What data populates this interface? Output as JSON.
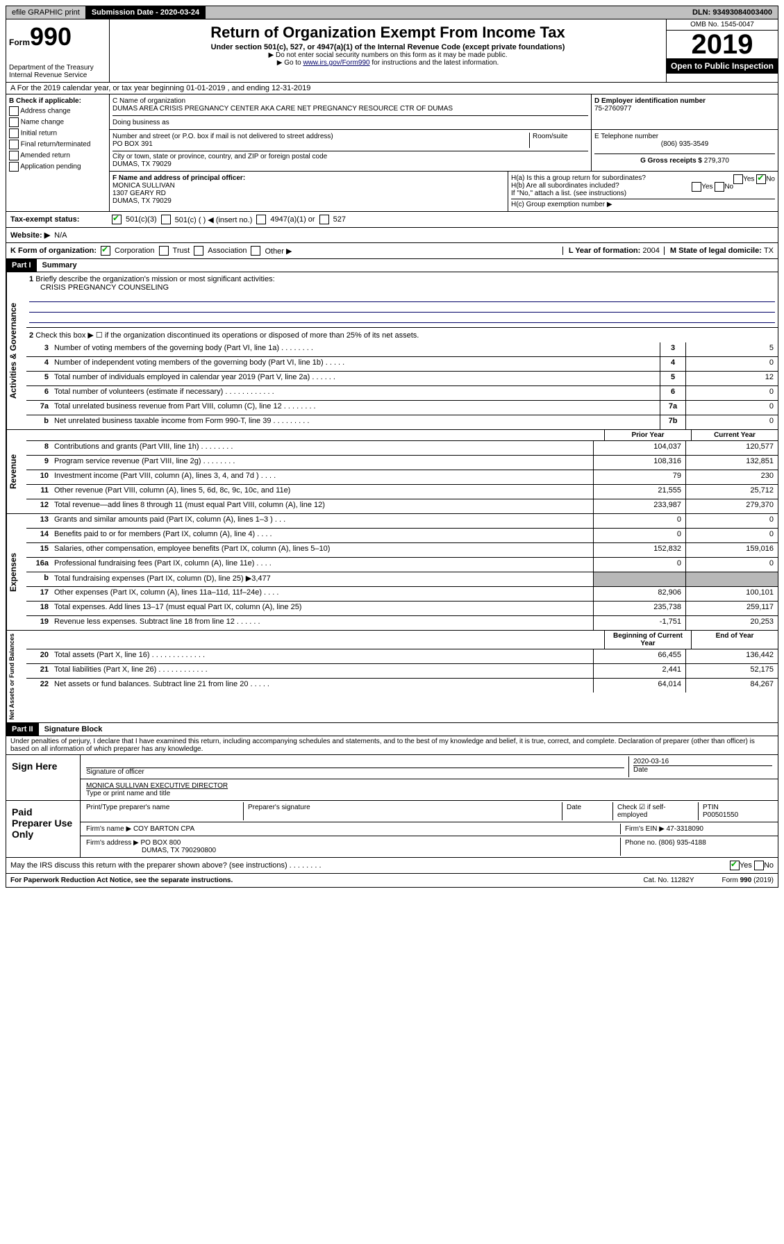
{
  "topbar": {
    "efile": "efile GRAPHIC print",
    "submission_label": "Submission Date - ",
    "submission_date": "2020-03-24",
    "dln": "DLN: 93493084003400"
  },
  "header": {
    "form_prefix": "Form",
    "form_number": "990",
    "dept": "Department of the Treasury\nInternal Revenue Service",
    "title": "Return of Organization Exempt From Income Tax",
    "subtitle": "Under section 501(c), 527, or 4947(a)(1) of the Internal Revenue Code (except private foundations)",
    "note1": "▶ Do not enter social security numbers on this form as it may be made public.",
    "note2_pre": "▶ Go to ",
    "note2_link": "www.irs.gov/Form990",
    "note2_post": " for instructions and the latest information.",
    "omb": "OMB No. 1545-0047",
    "year": "2019",
    "open_public": "Open to Public Inspection"
  },
  "rowA": "A For the 2019 calendar year, or tax year beginning 01-01-2019     , and ending 12-31-2019",
  "colB": {
    "header": "B Check if applicable:",
    "items": [
      "Address change",
      "Name change",
      "Initial return",
      "Final return/terminated",
      "Amended return",
      "Application pending"
    ]
  },
  "colC": {
    "name_label": "C Name of organization",
    "name": "DUMAS AREA CRISIS PREGNANCY CENTER AKA CARE NET PREGNANCY RESOURCE CTR OF DUMAS",
    "dba_label": "Doing business as",
    "addr_label": "Number and street (or P.O. box if mail is not delivered to street address)",
    "room_label": "Room/suite",
    "addr": "PO BOX 391",
    "city_label": "City or town, state or province, country, and ZIP or foreign postal code",
    "city": "DUMAS, TX  79029"
  },
  "colD": {
    "ein_label": "D Employer identification number",
    "ein": "75-2760977",
    "phone_label": "E Telephone number",
    "phone": "(806) 935-3549",
    "gross_label": "G Gross receipts $ ",
    "gross": "279,370"
  },
  "rowF": {
    "label": "F  Name and address of principal officer:",
    "name": "MONICA SULLIVAN",
    "addr1": "1307 GEARY RD",
    "addr2": "DUMAS, TX  79029"
  },
  "rowH": {
    "ha": "H(a)  Is this a group return for subordinates?",
    "hb": "H(b)  Are all subordinates included?",
    "hb_note": "If \"No,\" attach a list. (see instructions)",
    "hc": "H(c)  Group exemption number ▶"
  },
  "rowI": {
    "label": "Tax-exempt status:",
    "opts": [
      "501(c)(3)",
      "501(c) (   ) ◀ (insert no.)",
      "4947(a)(1) or",
      "527"
    ]
  },
  "rowJ": {
    "label": "Website: ▶",
    "val": "N/A"
  },
  "rowK": {
    "label": "K Form of organization:",
    "opts": [
      "Corporation",
      "Trust",
      "Association",
      "Other ▶"
    ],
    "year_label": "L Year of formation: ",
    "year": "2004",
    "state_label": "M State of legal domicile: ",
    "state": "TX"
  },
  "part1": {
    "header": "Part I",
    "title": "Summary"
  },
  "governance": {
    "label": "Activities & Governance",
    "l1": "Briefly describe the organization's mission or most significant activities:",
    "l1_val": "CRISIS PREGNANCY COUNSELING",
    "l2": "Check this box ▶ ☐  if the organization discontinued its operations or disposed of more than 25% of its net assets.",
    "rows": [
      {
        "n": "3",
        "d": "Number of voting members of the governing body (Part VI, line 1a)   .    .    .    .    .    .    .    .",
        "b": "3",
        "v": "5"
      },
      {
        "n": "4",
        "d": "Number of independent voting members of the governing body (Part VI, line 1b)   .    .    .    .    .",
        "b": "4",
        "v": "0"
      },
      {
        "n": "5",
        "d": "Total number of individuals employed in calendar year 2019 (Part V, line 2a)   .    .    .    .    .    .",
        "b": "5",
        "v": "12"
      },
      {
        "n": "6",
        "d": "Total number of volunteers (estimate if necessary)   .    .    .    .    .    .    .    .    .    .    .    .",
        "b": "6",
        "v": "0"
      },
      {
        "n": "7a",
        "d": "Total unrelated business revenue from Part VIII, column (C), line 12   .    .    .    .    .    .    .    .",
        "b": "7a",
        "v": "0"
      },
      {
        "n": "b",
        "d": "Net unrelated business taxable income from Form 990-T, line 39   .    .    .    .    .    .    .    .    .",
        "b": "7b",
        "v": "0"
      }
    ]
  },
  "revenue": {
    "label": "Revenue",
    "header_prior": "Prior Year",
    "header_current": "Current Year",
    "rows": [
      {
        "n": "8",
        "d": "Contributions and grants (Part VIII, line 1h)   .    .    .    .    .    .    .    .",
        "p": "104,037",
        "c": "120,577"
      },
      {
        "n": "9",
        "d": "Program service revenue (Part VIII, line 2g)   .    .    .    .    .    .    .    .",
        "p": "108,316",
        "c": "132,851"
      },
      {
        "n": "10",
        "d": "Investment income (Part VIII, column (A), lines 3, 4, and 7d )   .    .    .    .",
        "p": "79",
        "c": "230"
      },
      {
        "n": "11",
        "d": "Other revenue (Part VIII, column (A), lines 5, 6d, 8c, 9c, 10c, and 11e)",
        "p": "21,555",
        "c": "25,712"
      },
      {
        "n": "12",
        "d": "Total revenue—add lines 8 through 11 (must equal Part VIII, column (A), line 12)",
        "p": "233,987",
        "c": "279,370"
      }
    ]
  },
  "expenses": {
    "label": "Expenses",
    "rows": [
      {
        "n": "13",
        "d": "Grants and similar amounts paid (Part IX, column (A), lines 1–3 )   .    .    .",
        "p": "0",
        "c": "0"
      },
      {
        "n": "14",
        "d": "Benefits paid to or for members (Part IX, column (A), line 4)   .    .    .    .",
        "p": "0",
        "c": "0"
      },
      {
        "n": "15",
        "d": "Salaries, other compensation, employee benefits (Part IX, column (A), lines 5–10)",
        "p": "152,832",
        "c": "159,016"
      },
      {
        "n": "16a",
        "d": "Professional fundraising fees (Part IX, column (A), line 11e)   .    .    .    .",
        "p": "0",
        "c": "0"
      },
      {
        "n": "b",
        "d": "Total fundraising expenses (Part IX, column (D), line 25) ▶3,477",
        "p": "",
        "c": "",
        "shade": true
      },
      {
        "n": "17",
        "d": "Other expenses (Part IX, column (A), lines 11a–11d, 11f–24e)   .    .    .    .",
        "p": "82,906",
        "c": "100,101"
      },
      {
        "n": "18",
        "d": "Total expenses. Add lines 13–17 (must equal Part IX, column (A), line 25)",
        "p": "235,738",
        "c": "259,117"
      },
      {
        "n": "19",
        "d": "Revenue less expenses. Subtract line 18 from line 12   .    .    .    .    .    .",
        "p": "-1,751",
        "c": "20,253"
      }
    ]
  },
  "netassets": {
    "label": "Net Assets or Fund Balances",
    "header_begin": "Beginning of Current Year",
    "header_end": "End of Year",
    "rows": [
      {
        "n": "20",
        "d": "Total assets (Part X, line 16)   .    .    .    .    .    .    .    .    .    .    .    .    .",
        "p": "66,455",
        "c": "136,442"
      },
      {
        "n": "21",
        "d": "Total liabilities (Part X, line 26)   .    .    .    .    .    .    .    .    .    .    .    .",
        "p": "2,441",
        "c": "52,175"
      },
      {
        "n": "22",
        "d": "Net assets or fund balances. Subtract line 21 from line 20   .    .    .    .    .",
        "p": "64,014",
        "c": "84,267"
      }
    ]
  },
  "part2": {
    "header": "Part II",
    "title": "Signature Block"
  },
  "sig": {
    "perjury": "Under penalties of perjury, I declare that I have examined this return, including accompanying schedules and statements, and to the best of my knowledge and belief, it is true, correct, and complete. Declaration of preparer (other than officer) is based on all information of which preparer has any knowledge.",
    "sign_here": "Sign Here",
    "sig_officer": "Signature of officer",
    "date": "2020-03-16",
    "date_label": "Date",
    "typed_name": "MONICA SULLIVAN  EXECUTIVE DIRECTOR",
    "typed_label": "Type or print name and title",
    "paid": "Paid Preparer Use Only",
    "prep_name_label": "Print/Type preparer's name",
    "prep_sig_label": "Preparer's signature",
    "prep_date_label": "Date",
    "check_label": "Check ☑ if self-employed",
    "ptin_label": "PTIN",
    "ptin": "P00501550",
    "firm_name_label": "Firm's name    ▶ ",
    "firm_name": "COY BARTON CPA",
    "firm_ein_label": "Firm's EIN ▶ ",
    "firm_ein": "47-3318090",
    "firm_addr_label": "Firm's address ▶ ",
    "firm_addr": "PO BOX 800",
    "firm_city": "DUMAS, TX  790290800",
    "phone_label": "Phone no. ",
    "phone": "(806) 935-4188"
  },
  "discuss": "May the IRS discuss this return with the preparer shown above? (see instructions)    .    .    .    .    .    .    .    .",
  "footer": {
    "left": "For Paperwork Reduction Act Notice, see the separate instructions.",
    "mid": "Cat. No. 11282Y",
    "right": "Form 990 (2019)"
  }
}
